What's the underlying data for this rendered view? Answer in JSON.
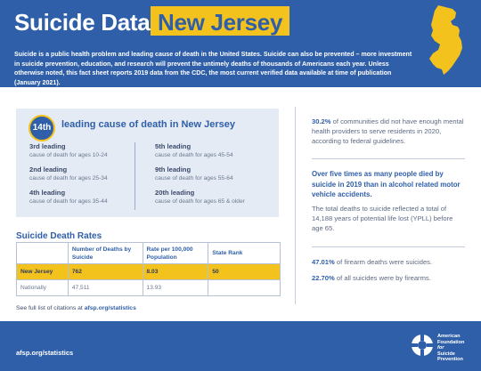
{
  "header": {
    "title_prefix": "Suicide Data:",
    "title_state": "New Jersey",
    "intro": "Suicide is a public health problem and leading cause of death in the United States. Suicide can also be prevented – more investment in suicide prevention, education, and research will prevent the untimely deaths of thousands of Americans each year. Unless otherwise noted, this fact sheet reports 2019 data from the CDC, the most current verified data available at time of publication (January 2021).",
    "map_icon": "new-jersey-state-map"
  },
  "rank": {
    "overall": "14th",
    "headline": "leading cause of death in New Jersey",
    "items": [
      {
        "rank": "3rd leading",
        "ages": "cause of death for ages 10-24"
      },
      {
        "rank": "2nd leading",
        "ages": "cause of death for ages 25-34"
      },
      {
        "rank": "4th leading",
        "ages": "cause of death for ages 35-44"
      },
      {
        "rank": "5th leading",
        "ages": "cause of death for ages 45-54"
      },
      {
        "rank": "9th leading",
        "ages": "cause of death for ages 55-64"
      },
      {
        "rank": "20th leading",
        "ages": "cause of death for ages 65 & older"
      }
    ]
  },
  "rates": {
    "title": "Suicide Death Rates",
    "headers": [
      "",
      "Number of Deaths by Suicide",
      "Rate per 100,000 Population",
      "State Rank"
    ],
    "rows": [
      {
        "label": "New Jersey",
        "deaths": "762",
        "rate": "8.03",
        "rank": "50"
      },
      {
        "label": "Nationally",
        "deaths": "47,511",
        "rate": "13.93",
        "rank": ""
      }
    ]
  },
  "citation": {
    "prefix": "See full list of citations at",
    "link": "afsp.org/statistics"
  },
  "right": {
    "stat1_value": "30.2%",
    "stat1_text": "of communities did not have enough mental health providers to serve residents in 2020, according to federal guidelines.",
    "stat2": "Over five times as many people died by suicide in 2019 than in alcohol related motor vehicle accidents.",
    "stat3": "The total deaths to suicide reflected a total of 14,188 years of potential life lost (YPLL) before age 65.",
    "stat4_value": "47.01%",
    "stat4_text": "of firearm deaths were suicides.",
    "stat5_value": "22.70%",
    "stat5_text": "of all suicides were by firearms."
  },
  "footer": {
    "url": "afsp.org/statistics",
    "org_line1": "American",
    "org_line2": "Foundation",
    "org_line3": "for",
    "org_line4": "Suicide",
    "org_line5": "Prevention",
    "logo_icon": "afsp-life-ring-icon"
  },
  "colors": {
    "brand_blue": "#2f5fa8",
    "accent_yellow": "#f4c21c",
    "panel_blue": "#e4ebf5"
  }
}
